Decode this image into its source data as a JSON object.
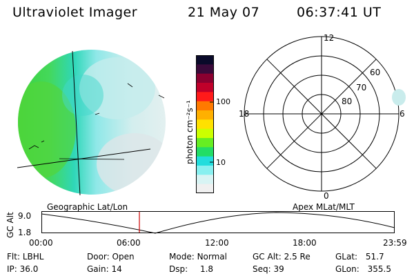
{
  "header": {
    "instrument": "Ultraviolet Imager",
    "date": "21 May 07",
    "time": "06:37:41 UT"
  },
  "colorbar": {
    "unit_label": "photon cm⁻²s⁻¹",
    "ticks": [
      "100",
      "10"
    ],
    "colors": [
      "#0a0a2a",
      "#3a0a3a",
      "#8b0030",
      "#c0002a",
      "#ff1a1a",
      "#ff7a00",
      "#ffb000",
      "#ffe100",
      "#ccff00",
      "#66ee22",
      "#22dd66",
      "#22dddd",
      "#88f0f0",
      "#d8f4f4",
      "#f0f0f0"
    ]
  },
  "polar_plot": {
    "mlt_labels": [
      "12",
      "18",
      "6",
      "0"
    ],
    "lat_labels": [
      "60",
      "70",
      "80"
    ]
  },
  "orbit_plot": {
    "ylabel": "GC Alt",
    "y_ticks": [
      "9.0",
      "1.8"
    ],
    "left_title": "Geographic Lat/Lon",
    "right_title": "Apex MLat/MLT",
    "x_ticks": [
      "00:00",
      "06:00",
      "12:00",
      "18:00",
      "23:59"
    ],
    "current_marker_color": "#cc0000"
  },
  "status": {
    "flt_label": "Flt:",
    "flt_value": "LBHL",
    "ip_label": "IP:",
    "ip_value": "36.0",
    "door_label": "Door:",
    "door_value": "Open",
    "gain_label": "Gain:",
    "gain_value": "14",
    "mode_label": "Mode:",
    "mode_value": "Normal",
    "dsp_label": "Dsp:",
    "dsp_value": "1.8",
    "gcalt_label": "GC Alt:",
    "gcalt_value": "2.5 Re",
    "seq_label": "Seq:",
    "seq_value": "39",
    "glat_label": "GLat:",
    "glat_value": "51.7",
    "glon_label": "GLon:",
    "glon_value": "355.5"
  }
}
